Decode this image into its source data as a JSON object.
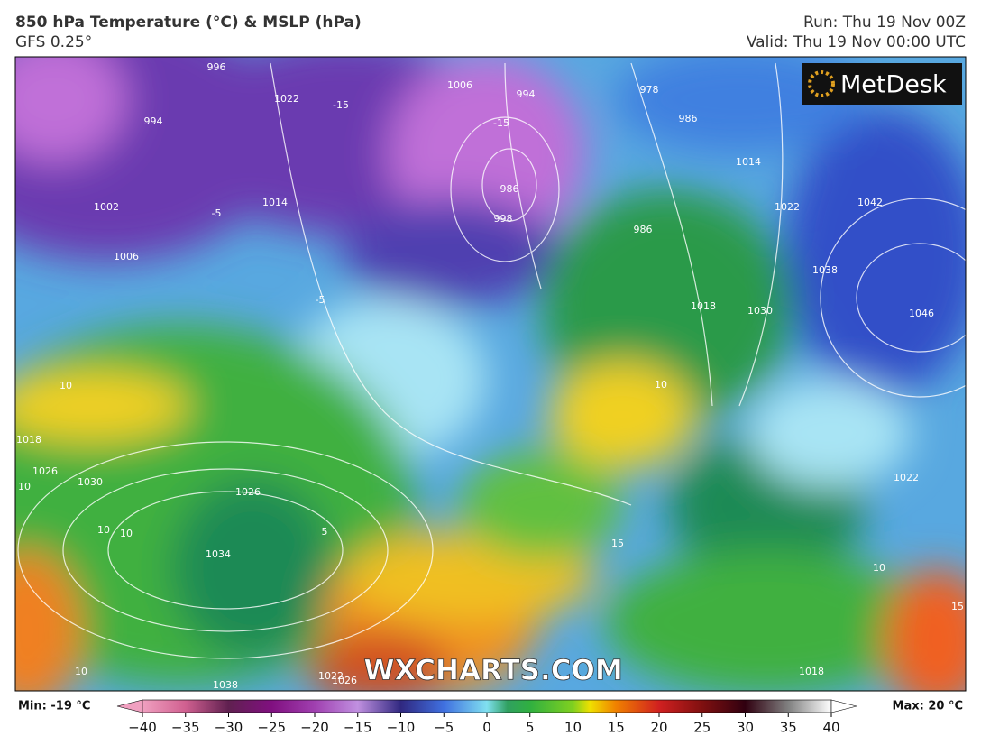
{
  "header": {
    "title": "850 hPa Temperature (°C) & MSLP (hPa)",
    "model": "GFS 0.25°",
    "run": "Run: Thu 19 Nov 00Z",
    "valid": "Valid: Thu 19 Nov 00:00 UTC"
  },
  "logo": "MetDesk",
  "watermark": "WXCHARTS.COM",
  "colorbar": {
    "min_label": "Min: -19 °C",
    "max_label": "Max: 20 °C",
    "ticks": [
      {
        "value": -40,
        "label": "−40"
      },
      {
        "value": -35,
        "label": "−35"
      },
      {
        "value": -30,
        "label": "−30"
      },
      {
        "value": -25,
        "label": "−25"
      },
      {
        "value": -20,
        "label": "−20"
      },
      {
        "value": -15,
        "label": "−15"
      },
      {
        "value": -10,
        "label": "−10"
      },
      {
        "value": -5,
        "label": "−5"
      },
      0,
      5,
      10,
      15,
      20,
      25,
      30,
      35,
      40
    ]
  },
  "map_labels": [
    "996",
    "994",
    "1002",
    "1006",
    "1014",
    "1022",
    "-15",
    "1006",
    "994",
    "-15",
    "986",
    "998",
    "978",
    "986",
    "1014",
    "1022",
    "1042",
    "1038",
    "1046",
    "1030",
    "1018",
    "986",
    "10",
    "-5",
    "10",
    "1018",
    "1026",
    "1030",
    "10",
    "10",
    "10",
    "1038",
    "1034",
    "5",
    "1026",
    "15",
    "1022",
    "1026",
    "10",
    "1018",
    "10",
    "15",
    "1022",
    "-5"
  ]
}
